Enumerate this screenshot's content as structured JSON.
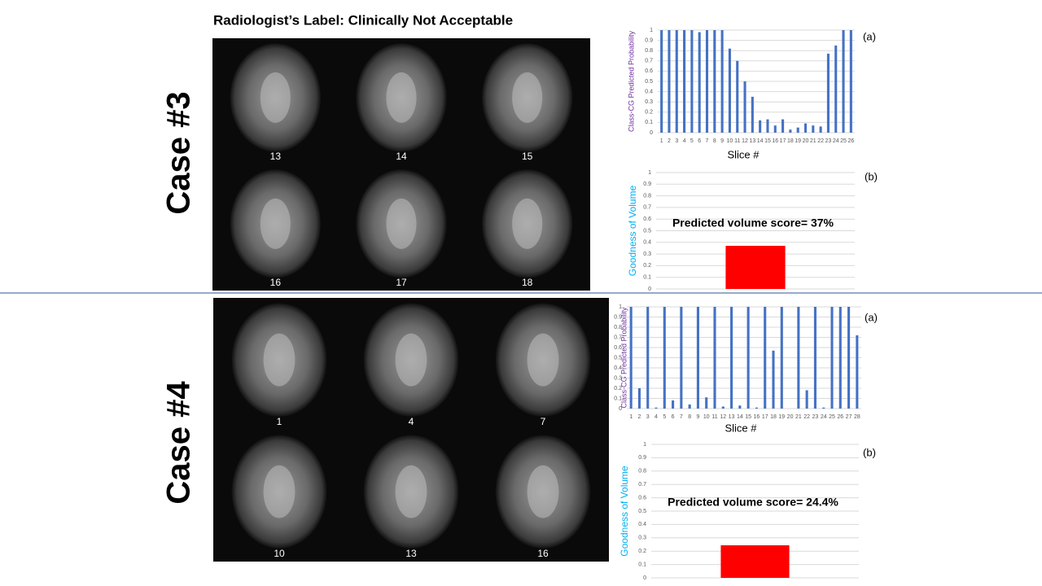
{
  "title": "Radiologist’s Label: Clinically Not Acceptable",
  "cases": [
    {
      "label": "Case #3",
      "slices": [
        13,
        14,
        15,
        16,
        17,
        18
      ]
    },
    {
      "label": "Case #4",
      "slices": [
        1,
        4,
        7,
        10,
        13,
        16
      ]
    }
  ],
  "chart_data": [
    {
      "type": "bar",
      "annotation": "(a)",
      "xlabel": "Slice #",
      "ylabel": "Class-CG  Predicted Probability",
      "ylabel_color": "#7030a0",
      "categories": [
        1,
        2,
        3,
        4,
        5,
        6,
        7,
        8,
        9,
        10,
        11,
        12,
        13,
        14,
        15,
        16,
        17,
        18,
        19,
        20,
        21,
        22,
        23,
        24,
        25,
        26
      ],
      "values": [
        1,
        1,
        1,
        1,
        1,
        0.98,
        1,
        1,
        1,
        0.82,
        0.7,
        0.5,
        0.35,
        0.12,
        0.13,
        0.07,
        0.13,
        0.03,
        0.05,
        0.09,
        0.07,
        0.06,
        0.77,
        0.85,
        1,
        1
      ],
      "color": "#4472c4",
      "ylim": [
        0,
        1
      ],
      "yticks": [
        0,
        0.1,
        0.2,
        0.3,
        0.4,
        0.5,
        0.6,
        0.7,
        0.8,
        0.9,
        1
      ],
      "grid": true
    },
    {
      "type": "bar",
      "annotation": "(b)",
      "ylabel": "Goodness  of  Volume",
      "ylabel_color": "#00b0f0",
      "text": "Predicted volume score= 37%",
      "categories": [
        null
      ],
      "values": [
        0.37
      ],
      "color": "#ff0000",
      "ylim": [
        0,
        1
      ],
      "yticks": [
        0,
        0.1,
        0.2,
        0.3,
        0.4,
        0.5,
        0.6,
        0.7,
        0.8,
        0.9,
        1
      ],
      "grid": true
    },
    {
      "type": "bar",
      "annotation": "(a)",
      "xlabel": "Slice #",
      "ylabel": "Class-CG  Predicted Probability",
      "ylabel_color": "#7030a0",
      "categories": [
        1,
        2,
        3,
        4,
        5,
        6,
        7,
        8,
        9,
        10,
        11,
        12,
        13,
        14,
        15,
        16,
        17,
        18,
        19,
        20,
        21,
        22,
        23,
        24,
        25,
        26,
        27,
        28
      ],
      "values": [
        1,
        0.2,
        1,
        0.01,
        1,
        0.08,
        1,
        0.04,
        1,
        0.11,
        1,
        0.02,
        1,
        0.03,
        1,
        0.01,
        1,
        0.57,
        1,
        0,
        1,
        0.18,
        1,
        0.01,
        1,
        1,
        1,
        0.72
      ],
      "color": "#4472c4",
      "ylim": [
        0,
        1
      ],
      "yticks": [
        0,
        0.1,
        0.2,
        0.3,
        0.4,
        0.5,
        0.6,
        0.7,
        0.8,
        0.9,
        1
      ],
      "grid": true
    },
    {
      "type": "bar",
      "annotation": "(b)",
      "ylabel": "Goodness  of  Volume",
      "ylabel_color": "#00b0f0",
      "text": "Predicted volume score= 24.4%",
      "categories": [
        null
      ],
      "values": [
        0.244
      ],
      "color": "#ff0000",
      "ylim": [
        0,
        1
      ],
      "yticks": [
        0,
        0.1,
        0.2,
        0.3,
        0.4,
        0.5,
        0.6,
        0.7,
        0.8,
        0.9,
        1
      ],
      "grid": true
    }
  ]
}
